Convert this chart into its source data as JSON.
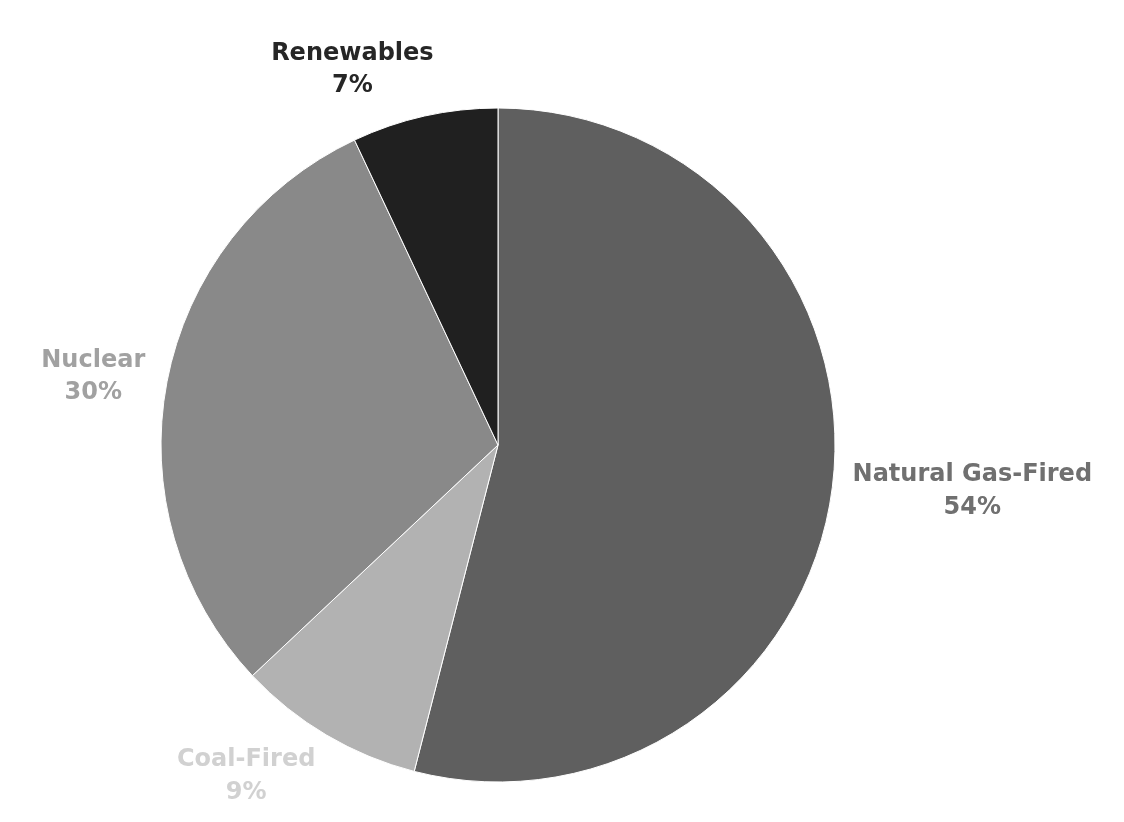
{
  "chart_data": {
    "type": "pie",
    "categories": [
      "Natural Gas-Fired",
      "Coal-Fired",
      "Nuclear",
      "Renewables"
    ],
    "values": [
      54,
      9,
      30,
      7
    ],
    "colors": [
      "#5f5f5f",
      "#b2b2b2",
      "#898989",
      "#202020"
    ],
    "value_labels": [
      "54%",
      "9%",
      "30%",
      "7%"
    ]
  }
}
